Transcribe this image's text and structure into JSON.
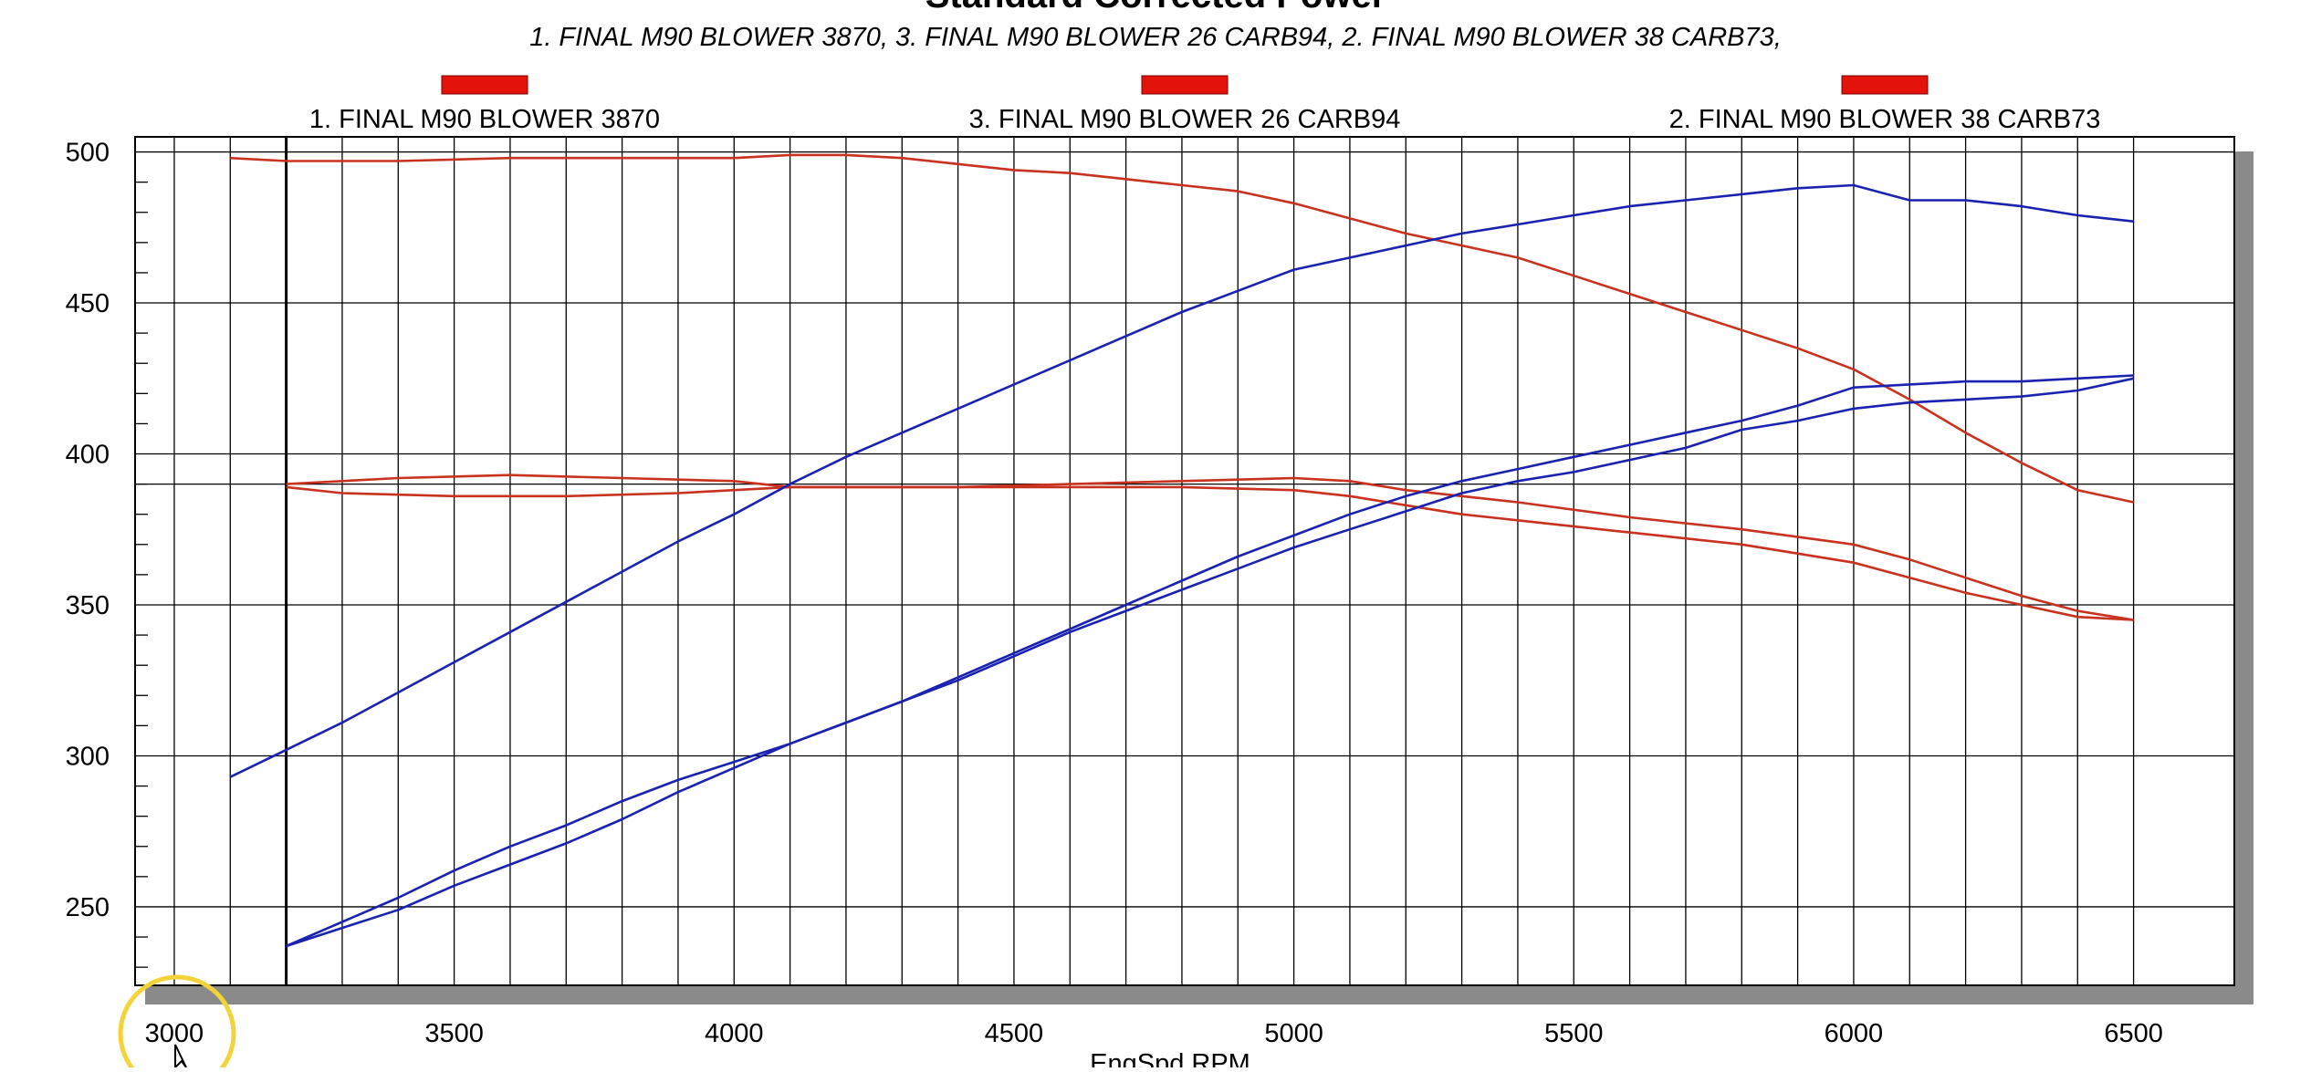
{
  "chart_data": {
    "type": "line",
    "title": "Standard Corrected Power",
    "subtitle": "1. FINAL M90 BLOWER 3870, 3. FINAL M90 BLOWER 26 CARB94, 2. FINAL M90 BLOWER 38 CARB73,",
    "xlabel": "EngSpd RPM",
    "ylabel": "",
    "xlim": [
      2930,
      6680
    ],
    "ylim": [
      224,
      505
    ],
    "x_ticks": [
      "3000",
      "3500",
      "4000",
      "4500",
      "5000",
      "5500",
      "6000",
      "6500"
    ],
    "y_ticks": [
      "250",
      "300",
      "350",
      "400",
      "450",
      "500"
    ],
    "grid": true,
    "legend": {
      "placement": "top",
      "entries": [
        {
          "label": "1. FINAL M90 BLOWER 3870",
          "color": "#e3120b"
        },
        {
          "label": "3. FINAL M90 BLOWER 26 CARB94",
          "color": "#e3120b"
        },
        {
          "label": "2. FINAL M90 BLOWER 38 CARB73",
          "color": "#e3120b"
        }
      ]
    },
    "colors": {
      "torque": "#c8321e",
      "power": "#1a22b0"
    },
    "series": [
      {
        "color": "#c8321e",
        "points": [
          [
            3100,
            498
          ],
          [
            3200,
            497
          ],
          [
            3400,
            497
          ],
          [
            3600,
            498
          ],
          [
            3800,
            498
          ],
          [
            4000,
            498
          ],
          [
            4100,
            499
          ],
          [
            4200,
            499
          ],
          [
            4300,
            498
          ],
          [
            4400,
            496
          ],
          [
            4500,
            494
          ],
          [
            4600,
            493
          ],
          [
            4700,
            491
          ],
          [
            4800,
            489
          ],
          [
            4900,
            487
          ],
          [
            5000,
            483
          ],
          [
            5100,
            478
          ],
          [
            5200,
            473
          ],
          [
            5300,
            469
          ],
          [
            5400,
            465
          ],
          [
            5500,
            459
          ],
          [
            5600,
            453
          ],
          [
            5700,
            447
          ],
          [
            5800,
            441
          ],
          [
            5900,
            435
          ],
          [
            6000,
            428
          ],
          [
            6100,
            418
          ],
          [
            6200,
            407
          ],
          [
            6300,
            397
          ],
          [
            6400,
            388
          ],
          [
            6500,
            384
          ]
        ]
      },
      {
        "color": "#c8321e",
        "points": [
          [
            3200,
            390
          ],
          [
            3400,
            392
          ],
          [
            3600,
            393
          ],
          [
            3800,
            392
          ],
          [
            4000,
            391
          ],
          [
            4100,
            389
          ],
          [
            4200,
            389
          ],
          [
            4400,
            389
          ],
          [
            4600,
            390
          ],
          [
            4800,
            391
          ],
          [
            5000,
            392
          ],
          [
            5100,
            391
          ],
          [
            5200,
            388
          ],
          [
            5300,
            386
          ],
          [
            5400,
            384
          ],
          [
            5600,
            379
          ],
          [
            5800,
            375
          ],
          [
            6000,
            370
          ],
          [
            6100,
            365
          ],
          [
            6200,
            359
          ],
          [
            6300,
            353
          ],
          [
            6400,
            348
          ],
          [
            6500,
            345
          ]
        ]
      },
      {
        "color": "#c8321e",
        "points": [
          [
            3200,
            389
          ],
          [
            3300,
            387
          ],
          [
            3500,
            386
          ],
          [
            3700,
            386
          ],
          [
            3900,
            387
          ],
          [
            4000,
            388
          ],
          [
            4100,
            389
          ],
          [
            4200,
            389
          ],
          [
            4400,
            389
          ],
          [
            4600,
            389
          ],
          [
            4800,
            389
          ],
          [
            5000,
            388
          ],
          [
            5100,
            386
          ],
          [
            5200,
            383
          ],
          [
            5300,
            380
          ],
          [
            5400,
            378
          ],
          [
            5600,
            374
          ],
          [
            5800,
            370
          ],
          [
            6000,
            364
          ],
          [
            6100,
            359
          ],
          [
            6200,
            354
          ],
          [
            6300,
            350
          ],
          [
            6400,
            346
          ],
          [
            6500,
            345
          ]
        ]
      },
      {
        "color": "#1a22b0",
        "points": [
          [
            3100,
            293
          ],
          [
            3200,
            302
          ],
          [
            3300,
            311
          ],
          [
            3400,
            321
          ],
          [
            3500,
            331
          ],
          [
            3600,
            341
          ],
          [
            3700,
            351
          ],
          [
            3800,
            361
          ],
          [
            3900,
            371
          ],
          [
            4000,
            380
          ],
          [
            4100,
            390
          ],
          [
            4200,
            399
          ],
          [
            4300,
            407
          ],
          [
            4400,
            415
          ],
          [
            4500,
            423
          ],
          [
            4600,
            431
          ],
          [
            4700,
            439
          ],
          [
            4800,
            447
          ],
          [
            4900,
            454
          ],
          [
            5000,
            461
          ],
          [
            5100,
            465
          ],
          [
            5200,
            469
          ],
          [
            5300,
            473
          ],
          [
            5400,
            476
          ],
          [
            5500,
            479
          ],
          [
            5600,
            482
          ],
          [
            5700,
            484
          ],
          [
            5800,
            486
          ],
          [
            5900,
            488
          ],
          [
            6000,
            489
          ],
          [
            6100,
            484
          ],
          [
            6200,
            484
          ],
          [
            6300,
            482
          ],
          [
            6400,
            479
          ],
          [
            6500,
            477
          ]
        ]
      },
      {
        "color": "#1a22b0",
        "points": [
          [
            3200,
            237
          ],
          [
            3300,
            245
          ],
          [
            3400,
            253
          ],
          [
            3500,
            262
          ],
          [
            3600,
            270
          ],
          [
            3700,
            277
          ],
          [
            3800,
            285
          ],
          [
            3900,
            292
          ],
          [
            4000,
            298
          ],
          [
            4100,
            304
          ],
          [
            4200,
            311
          ],
          [
            4300,
            318
          ],
          [
            4400,
            326
          ],
          [
            4500,
            334
          ],
          [
            4600,
            342
          ],
          [
            4700,
            350
          ],
          [
            4800,
            358
          ],
          [
            4900,
            366
          ],
          [
            5000,
            373
          ],
          [
            5100,
            380
          ],
          [
            5200,
            386
          ],
          [
            5300,
            391
          ],
          [
            5400,
            395
          ],
          [
            5500,
            399
          ],
          [
            5600,
            403
          ],
          [
            5700,
            407
          ],
          [
            5800,
            411
          ],
          [
            5900,
            416
          ],
          [
            6000,
            422
          ],
          [
            6100,
            423
          ],
          [
            6200,
            424
          ],
          [
            6300,
            424
          ],
          [
            6400,
            425
          ],
          [
            6500,
            426
          ]
        ]
      },
      {
        "color": "#1a22b0",
        "points": [
          [
            3200,
            237
          ],
          [
            3300,
            243
          ],
          [
            3400,
            249
          ],
          [
            3500,
            257
          ],
          [
            3600,
            264
          ],
          [
            3700,
            271
          ],
          [
            3800,
            279
          ],
          [
            3900,
            288
          ],
          [
            4000,
            296
          ],
          [
            4100,
            304
          ],
          [
            4200,
            311
          ],
          [
            4300,
            318
          ],
          [
            4400,
            325
          ],
          [
            4500,
            333
          ],
          [
            4600,
            341
          ],
          [
            4700,
            348
          ],
          [
            4800,
            355
          ],
          [
            4900,
            362
          ],
          [
            5000,
            369
          ],
          [
            5100,
            375
          ],
          [
            5200,
            381
          ],
          [
            5300,
            387
          ],
          [
            5400,
            391
          ],
          [
            5500,
            394
          ],
          [
            5600,
            398
          ],
          [
            5700,
            402
          ],
          [
            5800,
            408
          ],
          [
            5900,
            411
          ],
          [
            6000,
            415
          ],
          [
            6100,
            417
          ],
          [
            6200,
            418
          ],
          [
            6300,
            419
          ],
          [
            6400,
            421
          ],
          [
            6500,
            425
          ]
        ]
      }
    ]
  }
}
